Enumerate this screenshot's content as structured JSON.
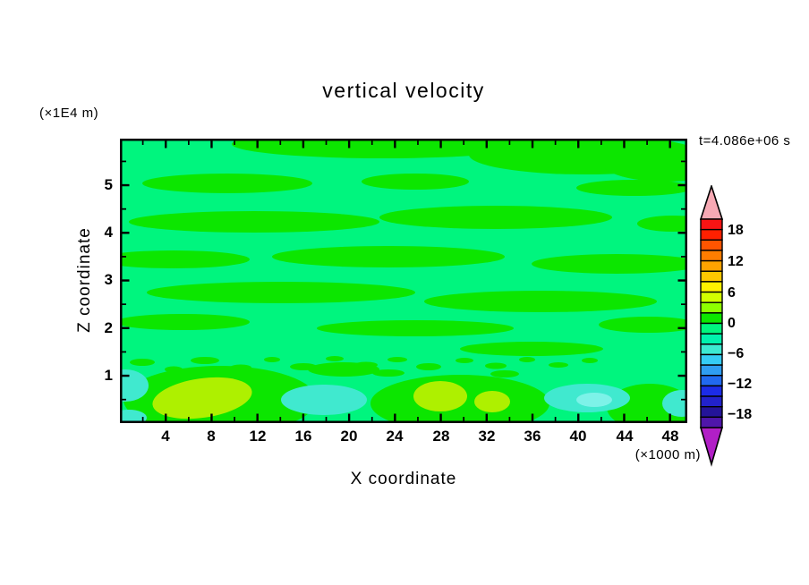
{
  "title": "vertical velocity",
  "time_label": "t=4.086e+06 s",
  "axes": {
    "y": {
      "unit_label": "(×1E4 m)",
      "axis_label": "Z coordinate",
      "tick_labels": [
        "5",
        "4",
        "3",
        "2",
        "1"
      ]
    },
    "x": {
      "axis_label": "X coordinate",
      "unit_label": "(×1000 m)",
      "tick_labels": [
        "4",
        "8",
        "12",
        "16",
        "20",
        "24",
        "28",
        "32",
        "36",
        "40",
        "44",
        "48"
      ]
    }
  },
  "colorbar": {
    "tick_labels": [
      "18",
      "12",
      "6",
      "0",
      "−6",
      "−12",
      "−18"
    ],
    "over_arrow_color": "#f7a9b4",
    "under_arrow_color": "#b11fc6",
    "segment_colors_top_to_bottom": [
      "#f81414",
      "#ff2000",
      "#ff5500",
      "#ff7d00",
      "#ffa300",
      "#ffc800",
      "#fff100",
      "#d2ff00",
      "#8eff00",
      "#0ce600",
      "#00f57e",
      "#00f2ad",
      "#3ce9d2",
      "#35ccf5",
      "#2f9df2",
      "#2169f0",
      "#1c2ce8",
      "#2222cc",
      "#241499",
      "#4f16aa"
    ]
  },
  "field_colors": {
    "base": "#00f57e",
    "green": "#0ce600",
    "yellow_green": "#aef000",
    "aqua": "#40e9cf",
    "light_cyan": "#7df2e8"
  },
  "chart_data": {
    "type": "heatmap",
    "subtype": "filled-contour",
    "title": "vertical velocity",
    "xlabel": "X coordinate",
    "x_units": "×1000 m",
    "ylabel": "Z coordinate",
    "y_units": "×1E4 m",
    "time_annotation": "t=4.086e+06 s",
    "x_range": [
      0,
      49.5
    ],
    "x_major_ticks": [
      4,
      8,
      12,
      16,
      20,
      24,
      28,
      32,
      36,
      40,
      44,
      48
    ],
    "x_minor_tick_step": 2,
    "y_range": [
      0,
      6
    ],
    "y_major_ticks": [
      1,
      2,
      3,
      4,
      5
    ],
    "y_minor_tick_step": 0.5,
    "contour_levels_range": [
      -20,
      20
    ],
    "contour_interval": 2,
    "colorbar_tick_values": [
      18,
      12,
      6,
      0,
      -6,
      -12,
      -18
    ],
    "legend_position": "right",
    "grid": false,
    "field_summary": "Vertical velocity field is mostly between -2 and +2: alternating elongated horizontal bands of 0..+2 (green) over a -2..0 (spring green) background through the full depth. Near the bottom boundary (z < 1) there are local maxima of +4..+6 (yellow-green blobs) around x≈4-12 and x≈26-33, and local minima of -4..-6 (aqua patches) around x≈0-2, x≈14-21, x≈38-44 and x≈47-49.5, with a speckled band of small 0..+2 cells near z≈0.9-1.3."
  }
}
